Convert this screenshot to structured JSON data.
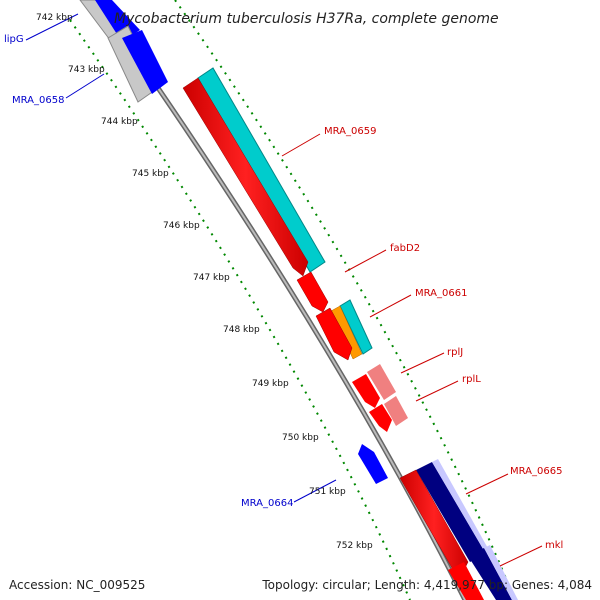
{
  "title": "Mycobacterium tuberculosis H37Ra, complete genome",
  "footer": {
    "accession": "Accession: NC_009525",
    "topology": "Topology: circular; Length: 4,419,977 bp; Genes: 4,084"
  },
  "scale_labels": [
    "742 kbp",
    "743 kbp",
    "744 kbp",
    "745 kbp",
    "746 kbp",
    "747 kbp",
    "748 kbp",
    "749 kbp",
    "750 kbp",
    "751 kbp",
    "752 kbp"
  ],
  "genes": [
    {
      "label": "lipG",
      "strand": "reverse",
      "color": "#0000cc"
    },
    {
      "label": "MRA_0658",
      "strand": "reverse",
      "color": "#0000cc"
    },
    {
      "label": "MRA_0659",
      "strand": "forward",
      "color": "#cc0000"
    },
    {
      "label": "fabD2",
      "strand": "forward",
      "color": "#cc0000"
    },
    {
      "label": "MRA_0661",
      "strand": "forward",
      "color": "#cc0000"
    },
    {
      "label": "rplJ",
      "strand": "forward",
      "color": "#cc0000"
    },
    {
      "label": "rplL",
      "strand": "forward",
      "color": "#cc0000"
    },
    {
      "label": "MRA_0664",
      "strand": "reverse",
      "color": "#0000cc"
    },
    {
      "label": "MRA_0665",
      "strand": "forward",
      "color": "#cc0000"
    },
    {
      "label": "mkl",
      "strand": "forward",
      "color": "#cc0000"
    }
  ],
  "colors": {
    "forward_gene": "#ff0000",
    "reverse_gene": "#0000ff",
    "cds_feature": "#00cccc",
    "dark_feature": "#000080",
    "trna_like": "#ff9900",
    "light_red": "#f08080",
    "backbone": "#888888",
    "tick_green": "#008800"
  }
}
